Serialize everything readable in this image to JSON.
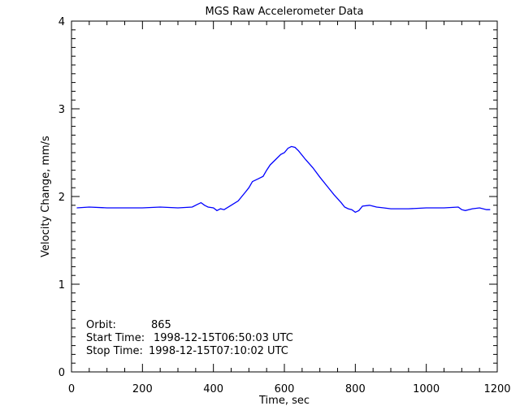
{
  "chart_data": {
    "type": "line",
    "title": "MGS Raw Accelerometer Data",
    "xlabel": "Time, sec",
    "ylabel": "Velocity Change, mm/s",
    "xlim": [
      0,
      1200
    ],
    "ylim": [
      0,
      4
    ],
    "xticks": [
      "0",
      "200",
      "400",
      "600",
      "800",
      "1000",
      "1200"
    ],
    "yticks": [
      "0",
      "1",
      "2",
      "3",
      "4"
    ],
    "grid": false,
    "line_color": "#0000ff",
    "annotations": [
      {
        "label": "Orbit:",
        "value": "865"
      },
      {
        "label": "Start Time:",
        "value": "1998-12-15T06:50:03 UTC"
      },
      {
        "label": "Stop Time:",
        "value": "1998-12-15T07:10:02 UTC"
      }
    ],
    "series": [
      {
        "x": [
          15,
          50,
          100,
          150,
          200,
          250,
          300,
          340,
          355,
          365,
          375,
          385,
          400,
          410,
          420,
          430,
          450,
          470,
          480,
          490,
          500,
          510,
          525,
          540,
          550,
          560,
          575,
          590,
          600,
          610,
          620,
          630,
          640,
          660,
          680,
          700,
          720,
          740,
          760,
          770,
          780,
          790,
          800,
          810,
          820,
          840,
          860,
          880,
          900,
          950,
          1000,
          1050,
          1090,
          1100,
          1110,
          1130,
          1150,
          1170,
          1180
        ],
        "y": [
          1.87,
          1.88,
          1.87,
          1.87,
          1.87,
          1.88,
          1.87,
          1.88,
          1.91,
          1.93,
          1.9,
          1.88,
          1.87,
          1.84,
          1.86,
          1.85,
          1.9,
          1.95,
          2.0,
          2.05,
          2.1,
          2.17,
          2.2,
          2.23,
          2.3,
          2.36,
          2.42,
          2.48,
          2.5,
          2.55,
          2.57,
          2.56,
          2.52,
          2.42,
          2.33,
          2.22,
          2.12,
          2.02,
          1.93,
          1.88,
          1.86,
          1.85,
          1.82,
          1.84,
          1.89,
          1.9,
          1.88,
          1.87,
          1.86,
          1.86,
          1.87,
          1.87,
          1.88,
          1.85,
          1.84,
          1.86,
          1.87,
          1.85,
          1.85
        ]
      }
    ]
  }
}
